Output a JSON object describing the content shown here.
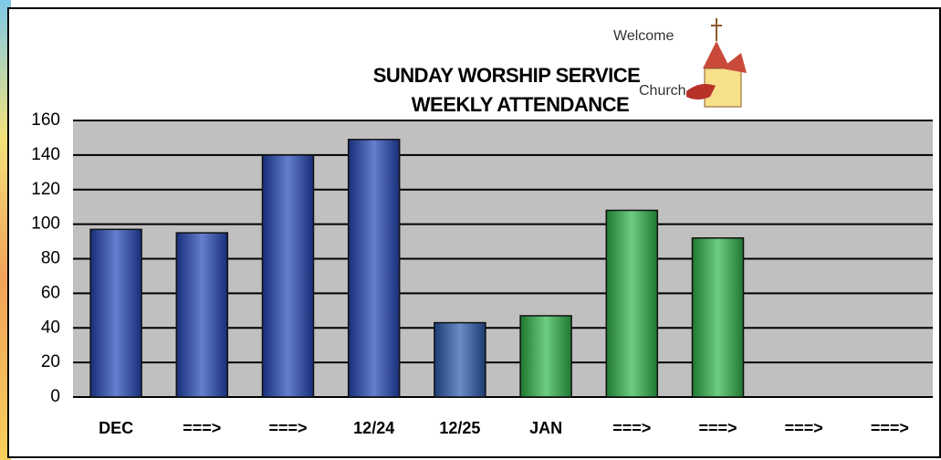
{
  "chart_data": {
    "type": "bar",
    "title": [
      "SUNDAY WORSHIP SERVICE",
      "WEEKLY ATTENDANCE"
    ],
    "clipart_text": [
      "Welcome",
      "Church"
    ],
    "categories": [
      "DEC",
      "===>",
      "===>",
      "12/24",
      "12/25",
      "JAN",
      "===>",
      "===>",
      "===>",
      "===>"
    ],
    "values": [
      97,
      95,
      140,
      149,
      43,
      47,
      108,
      92,
      null,
      null
    ],
    "colors": [
      "#2346b8",
      "#2346b8",
      "#2346b8",
      "#2346b8",
      "#2a5cb0",
      "#2fb84a",
      "#2fb84a",
      "#2fb84a",
      "#2fb84a",
      "#2fb84a"
    ],
    "ylim": [
      0,
      160
    ],
    "yticks": [
      0,
      20,
      40,
      60,
      80,
      100,
      120,
      140,
      160
    ],
    "grid": true
  }
}
